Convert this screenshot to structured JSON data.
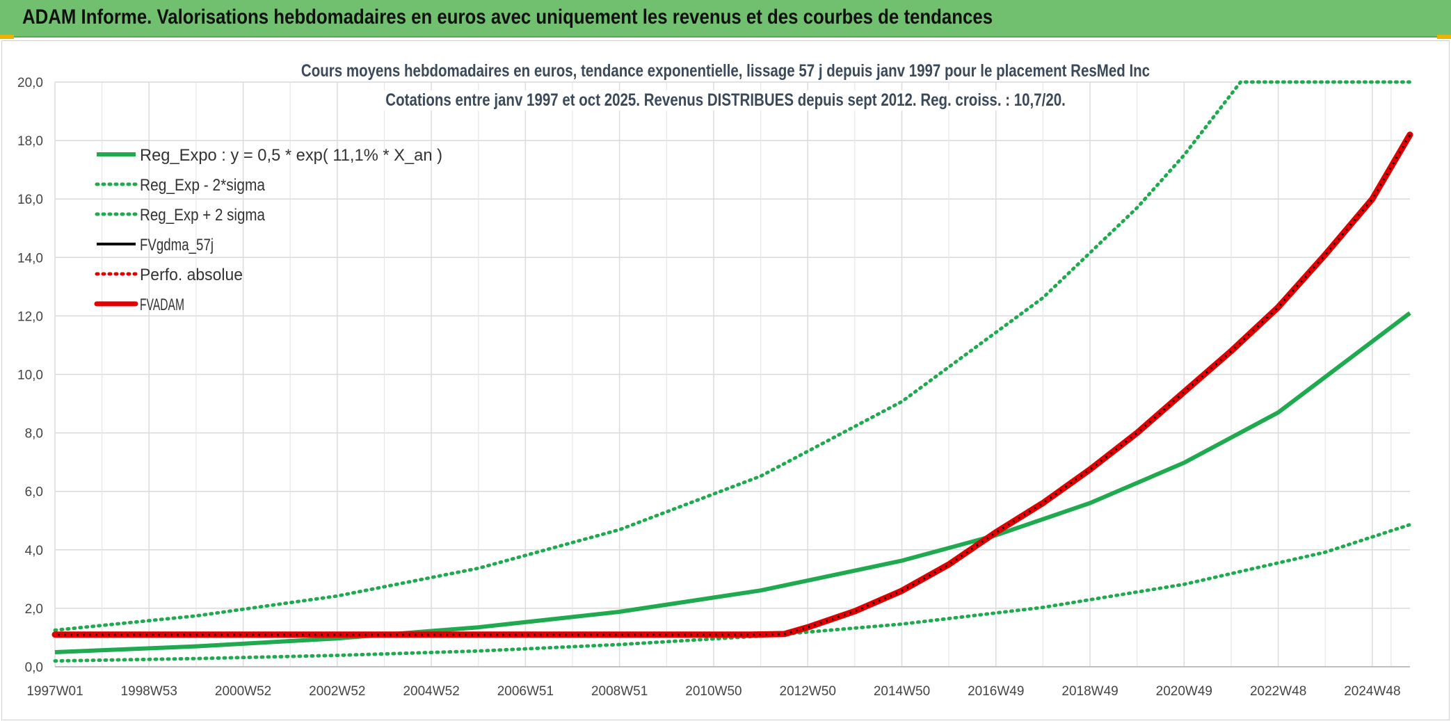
{
  "header": {
    "title": "ADAM Informe. Valorisations hebdomadaires en euros avec uniquement les revenus et des courbes de tendances"
  },
  "chart_data": {
    "type": "line",
    "title": "Cours moyens hebdomadaires en euros, tendance exponentielle, lissage 57 j depuis janv 1997 pour le placement ResMed Inc",
    "subtitle": "Cotations entre janv 1997 et oct 2025. Revenus DISTRIBUES depuis sept 2012. Reg. croiss. : 10,7/20.",
    "xlabel": "",
    "ylabel": "",
    "xlim": [
      1997.0,
      2025.8
    ],
    "ylim": [
      0,
      20
    ],
    "grid": true,
    "legend_position": "top-left",
    "x_ticks": [
      {
        "label": "1997W01",
        "x": 1997.0
      },
      {
        "label": "1998W53",
        "x": 1999.0
      },
      {
        "label": "2000W52",
        "x": 2001.0
      },
      {
        "label": "2002W52",
        "x": 2003.0
      },
      {
        "label": "2004W52",
        "x": 2005.0
      },
      {
        "label": "2006W51",
        "x": 2007.0
      },
      {
        "label": "2008W51",
        "x": 2009.0
      },
      {
        "label": "2010W50",
        "x": 2011.0
      },
      {
        "label": "2012W50",
        "x": 2013.0
      },
      {
        "label": "2014W50",
        "x": 2015.0
      },
      {
        "label": "2016W49",
        "x": 2017.0
      },
      {
        "label": "2018W49",
        "x": 2019.0
      },
      {
        "label": "2020W49",
        "x": 2021.0
      },
      {
        "label": "2022W48",
        "x": 2023.0
      },
      {
        "label": "2024W48",
        "x": 2025.0
      }
    ],
    "y_ticks": [
      "0,0",
      "2,0",
      "4,0",
      "6,0",
      "8,0",
      "10,0",
      "12,0",
      "14,0",
      "16,0",
      "18,0",
      "20,0"
    ],
    "series": [
      {
        "name": "Reg_Expo : y = 0,5 * exp( 11,1% *  X_an )",
        "color": "#1faa50",
        "style": "solid",
        "x": [
          1997.0,
          2000,
          2003,
          2006,
          2009,
          2012,
          2015,
          2017,
          2019,
          2021,
          2023,
          2025.8
        ],
        "y": [
          0.5,
          0.7,
          0.97,
          1.35,
          1.88,
          2.61,
          3.63,
          4.5,
          5.6,
          6.98,
          8.7,
          12.1
        ]
      },
      {
        "name": "Reg_Exp - 2*sigma",
        "color": "#1faa50",
        "style": "dotted",
        "x": [
          1997.0,
          2000,
          2003,
          2006,
          2009,
          2012,
          2015,
          2018,
          2021,
          2024,
          2025.8
        ],
        "y": [
          0.2,
          0.28,
          0.39,
          0.54,
          0.76,
          1.05,
          1.46,
          2.03,
          2.82,
          3.92,
          4.86
        ]
      },
      {
        "name": "Reg_Exp + 2 sigma",
        "color": "#1faa50",
        "style": "dotted",
        "x": [
          1997.0,
          2000,
          2003,
          2006,
          2009,
          2012,
          2015,
          2018,
          2020,
          2021,
          2022.2,
          2025.8
        ],
        "y": [
          1.25,
          1.74,
          2.42,
          3.37,
          4.69,
          6.52,
          9.07,
          12.62,
          15.7,
          17.5,
          20.0,
          20.0
        ]
      },
      {
        "name": "FVgdma_57j",
        "color": "#000000",
        "style": "solid",
        "x": [
          1997.0,
          2011.8,
          2012.5,
          2013,
          2014,
          2015,
          2016,
          2017,
          2018,
          2019,
          2020,
          2021,
          2022,
          2023,
          2024,
          2025,
          2025.8
        ],
        "y": [
          1.1,
          1.1,
          1.12,
          1.35,
          1.9,
          2.6,
          3.5,
          4.6,
          5.6,
          6.75,
          8.0,
          9.4,
          10.8,
          12.3,
          14.1,
          16.0,
          18.2
        ]
      },
      {
        "name": "Perfo. absolue",
        "color": "#e00000",
        "style": "dotted",
        "x": [
          1997.0,
          2011.8,
          2012.5,
          2013,
          2014,
          2015,
          2016,
          2017,
          2018,
          2019,
          2020,
          2021,
          2022,
          2023,
          2024,
          2025,
          2025.8
        ],
        "y": [
          1.1,
          1.1,
          1.12,
          1.35,
          1.9,
          2.6,
          3.5,
          4.6,
          5.6,
          6.75,
          8.0,
          9.4,
          10.8,
          12.3,
          14.1,
          16.0,
          18.2
        ]
      },
      {
        "name": "FVADAM",
        "color": "#e00000",
        "style": "solid",
        "x": [
          1997.0,
          2011.8,
          2012.5,
          2013,
          2014,
          2015,
          2016,
          2017,
          2018,
          2019,
          2020,
          2021,
          2022,
          2023,
          2024,
          2025,
          2025.8
        ],
        "y": [
          1.1,
          1.1,
          1.12,
          1.35,
          1.9,
          2.6,
          3.5,
          4.6,
          5.6,
          6.75,
          8.0,
          9.4,
          10.8,
          12.3,
          14.1,
          16.0,
          18.2
        ]
      }
    ]
  }
}
